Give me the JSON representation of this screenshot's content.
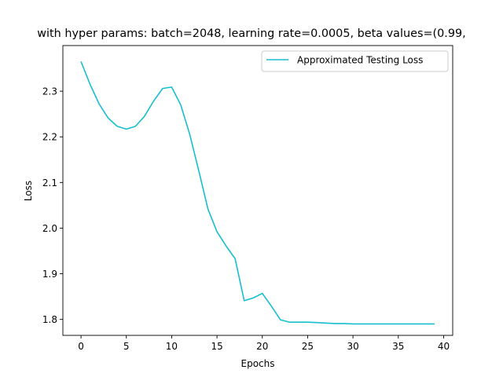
{
  "chart_data": {
    "type": "line",
    "title": "with hyper params: batch=2048, learning rate=0.0005, beta values=(0.99,",
    "xlabel": "Epochs",
    "ylabel": "Loss",
    "xlim": [
      -2,
      41
    ],
    "ylim": [
      1.765,
      2.4
    ],
    "xticks": [
      0,
      5,
      10,
      15,
      20,
      25,
      30,
      35,
      40
    ],
    "yticks": [
      1.8,
      1.9,
      2.0,
      2.1,
      2.2,
      2.3
    ],
    "xtick_labels": [
      "0",
      "5",
      "10",
      "15",
      "20",
      "25",
      "30",
      "35",
      "40"
    ],
    "ytick_labels": [
      "1.8",
      "1.9",
      "2.0",
      "2.1",
      "2.2",
      "2.3"
    ],
    "grid": false,
    "legend_position": "top-right",
    "series": [
      {
        "name": "Approximated Testing Loss",
        "color": "#17becf",
        "x": [
          0,
          1,
          2,
          3,
          4,
          5,
          6,
          7,
          8,
          9,
          10,
          11,
          12,
          13,
          14,
          15,
          16,
          17,
          18,
          19,
          20,
          21,
          22,
          23,
          24,
          25,
          26,
          27,
          28,
          29,
          30,
          31,
          32,
          33,
          34,
          35,
          36,
          37,
          38,
          39
        ],
        "values": [
          2.365,
          2.315,
          2.272,
          2.241,
          2.223,
          2.217,
          2.223,
          2.245,
          2.278,
          2.306,
          2.309,
          2.27,
          2.205,
          2.125,
          2.042,
          1.992,
          1.961,
          1.933,
          1.841,
          1.847,
          1.857,
          1.829,
          1.799,
          1.794,
          1.794,
          1.794,
          1.793,
          1.792,
          1.791,
          1.791,
          1.79,
          1.79,
          1.79,
          1.79,
          1.79,
          1.79,
          1.79,
          1.79,
          1.79,
          1.79
        ]
      }
    ]
  }
}
